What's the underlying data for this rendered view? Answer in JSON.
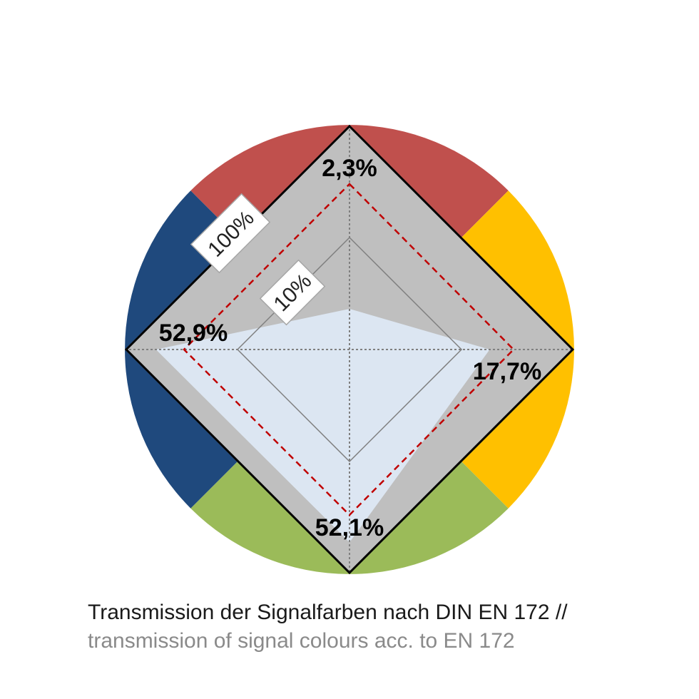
{
  "colors": {
    "red": "#c0504d",
    "yellow": "#ffc000",
    "green": "#9bbb59",
    "blue": "#1f497d",
    "frame_gray": "#bfbfbf",
    "data_fill": "#dce6f2",
    "norm_line": "#c00000"
  },
  "caption": {
    "de": "Transmission der Signalfarben nach DIN EN 172 //",
    "en": "transmission of signal colours acc. to EN 172"
  },
  "chart_data": {
    "type": "radar",
    "scale": "log",
    "scale_labels": [
      "100%",
      "10%"
    ],
    "axes": [
      {
        "colour": "red",
        "value": 2.3,
        "label": "2,3%"
      },
      {
        "colour": "yellow",
        "value": 17.7,
        "label": "17,7%"
      },
      {
        "colour": "green",
        "value": 52.1,
        "label": "52,1%"
      },
      {
        "colour": "blue",
        "value": 52.9,
        "label": "52,9%"
      }
    ],
    "reference_series": {
      "style": "dashed",
      "color": "#c00000"
    }
  }
}
